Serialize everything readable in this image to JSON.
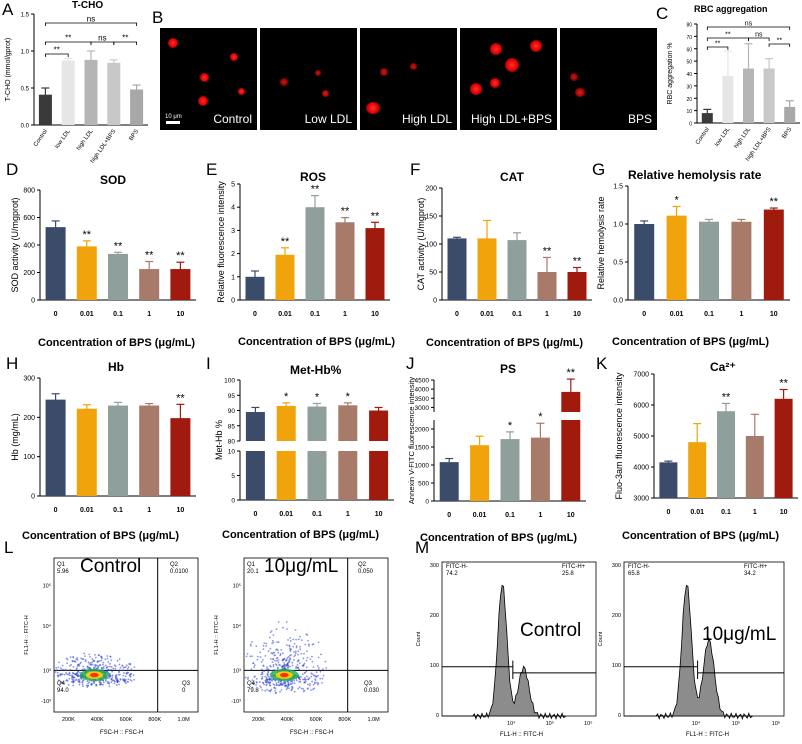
{
  "panels": {
    "A": {
      "letter": "A",
      "title": "T-CHO",
      "ylabel": "T-CHO (mmol/gprot)"
    },
    "B": {
      "letter": "B",
      "scale": "10 μm"
    },
    "C": {
      "letter": "C",
      "title": "RBC aggregation",
      "ylabel": "RBC aggregation %"
    },
    "D": {
      "letter": "D",
      "title": "SOD",
      "ylabel": "SOD activity (U/mgprot)",
      "xlabel": "Concentration of BPS (μg/mL)"
    },
    "E": {
      "letter": "E",
      "title": "ROS",
      "ylabel": "Relative fluorescence intensity",
      "xlabel": "Concentration of BPS (μg/mL)"
    },
    "F": {
      "letter": "F",
      "title": "CAT",
      "ylabel": "CAT activity (U/mgprot)",
      "xlabel": "Concentration of BPS (μg/mL)"
    },
    "G": {
      "letter": "G",
      "title": "Relative hemolysis rate",
      "ylabel": "Relative hemolysis rate",
      "xlabel": "Concentration of BPS (μg/mL)"
    },
    "H": {
      "letter": "H",
      "title": "Hb",
      "ylabel": "Hb (mg/mL)",
      "xlabel": "Concentration of BPS (μg/mL)"
    },
    "I": {
      "letter": "I",
      "title": "Met-Hb%",
      "ylabel": "Met-Hb %",
      "xlabel": "Concentration of BPS (μg/mL)"
    },
    "J": {
      "letter": "J",
      "title": "PS",
      "ylabel": "Annexin V-FITC fluorescence intensity",
      "xlabel": "Concentration of BPS (μg/mL)"
    },
    "K": {
      "letter": "K",
      "title": "Ca²⁺",
      "ylabel": "Fluo-3am fluorescence intensity",
      "xlabel": "Concentration of BPS (μg/mL)"
    },
    "L": {
      "letter": "L",
      "xlabel": "FSC-H :: FSC-H",
      "ylabel": "FL1-H :: FITC-H"
    },
    "M": {
      "letter": "M",
      "xlabel": "FL1-H :: FITC-H",
      "ylabel": "Count"
    }
  },
  "micrographs": [
    "Control",
    "Low LDL",
    "High LDL",
    "High LDL+BPS",
    "BPS"
  ],
  "colors": {
    "c0": "#3b4c6b",
    "c1": "#f0a30a",
    "c2": "#8f9f9c",
    "c3": "#a77a6a",
    "c4": "#a11a0e",
    "a1": "#3a3a3a",
    "a2": "#e6e6e6",
    "a3": "#b5b5b5",
    "a4": "#c8c8c8",
    "a5": "#a8a8a8"
  },
  "chart_data": [
    {
      "id": "A",
      "type": "bar",
      "categories": [
        "Control",
        "low LDL",
        "high LDL",
        "high LDL+BPS",
        "BPS"
      ],
      "values": [
        0.41,
        0.87,
        0.88,
        0.84,
        0.48
      ],
      "errors": [
        0.09,
        0.03,
        0.12,
        0.04,
        0.06
      ],
      "ylim": [
        0,
        1.5
      ],
      "yticks": [
        "0.0",
        "0.5",
        "1.0",
        "1.5"
      ],
      "sig": [
        "ns",
        "**",
        "**",
        "ns",
        "**"
      ]
    },
    {
      "id": "C",
      "type": "bar",
      "categories": [
        "Control",
        "low LDL",
        "high LDL",
        "high LDL+BPS",
        "BPS"
      ],
      "values": [
        8,
        38,
        44,
        44,
        13
      ],
      "errors": [
        3,
        20,
        20,
        8,
        5
      ],
      "ylim": [
        0,
        80
      ],
      "yticks": [
        "0",
        "10",
        "20",
        "30",
        "40",
        "50",
        "60",
        "70",
        "80"
      ],
      "sig": [
        "ns",
        "**",
        "**",
        "ns",
        "**"
      ]
    },
    {
      "id": "D",
      "type": "bar",
      "categories": [
        "0",
        "0.01",
        "0.1",
        "1",
        "10"
      ],
      "values": [
        530,
        390,
        335,
        225,
        225
      ],
      "errors": [
        45,
        40,
        12,
        55,
        50
      ],
      "ylim": [
        0,
        800
      ],
      "yticks": [
        "0",
        "200",
        "400",
        "600",
        "800"
      ],
      "stars": [
        "",
        "**",
        "**",
        "**",
        "**"
      ]
    },
    {
      "id": "E",
      "type": "bar",
      "categories": [
        "0",
        "0.01",
        "0.1",
        "1",
        "10"
      ],
      "values": [
        1.0,
        1.95,
        4.0,
        3.35,
        3.1
      ],
      "errors": [
        0.25,
        0.3,
        0.5,
        0.2,
        0.25
      ],
      "ylim": [
        0,
        5
      ],
      "yticks": [
        "0",
        "1",
        "2",
        "3",
        "4",
        "5"
      ],
      "stars": [
        "",
        "**",
        "**",
        "**",
        "**"
      ]
    },
    {
      "id": "F",
      "type": "bar",
      "categories": [
        "0",
        "0.01",
        "0.1",
        "1",
        "10"
      ],
      "values": [
        110,
        110,
        107,
        50,
        50
      ],
      "errors": [
        2,
        32,
        13,
        26,
        8
      ],
      "ylim": [
        0,
        200
      ],
      "yticks": [
        "0",
        "50",
        "100",
        "150",
        "200"
      ],
      "stars": [
        "",
        "",
        "",
        "**",
        "**"
      ]
    },
    {
      "id": "G",
      "type": "bar",
      "categories": [
        "0",
        "0.01",
        "0.1",
        "1",
        "10"
      ],
      "values": [
        1.0,
        1.11,
        1.03,
        1.03,
        1.19
      ],
      "errors": [
        0.04,
        0.12,
        0.03,
        0.03,
        0.02
      ],
      "ylim": [
        0,
        1.5
      ],
      "yticks": [
        "0.0",
        "0.5",
        "1.0",
        "1.5"
      ],
      "stars": [
        "",
        "*",
        "",
        "",
        "**"
      ]
    },
    {
      "id": "H",
      "type": "bar",
      "categories": [
        "0",
        "0.01",
        "0.1",
        "1",
        "10"
      ],
      "values": [
        245,
        222,
        230,
        230,
        198
      ],
      "errors": [
        15,
        10,
        8,
        5,
        35
      ],
      "ylim": [
        0,
        300
      ],
      "yticks": [
        "0",
        "100",
        "200",
        "300"
      ],
      "stars": [
        "",
        "",
        "",
        "",
        "**"
      ]
    },
    {
      "id": "I",
      "type": "bar",
      "categories": [
        "0",
        "0.01",
        "0.1",
        "1",
        "10"
      ],
      "values": [
        89.5,
        91.5,
        91.3,
        91.7,
        90.0
      ],
      "errors": [
        1.5,
        1.0,
        1.0,
        0.8,
        1.0
      ],
      "ylim": [
        0,
        100
      ],
      "yticks": [
        "0",
        "5",
        "10",
        "80",
        "85",
        "90",
        "95",
        "100"
      ],
      "stars": [
        "",
        "*",
        "*",
        "*",
        ""
      ],
      "broken": [
        10,
        80
      ]
    },
    {
      "id": "J",
      "type": "bar",
      "categories": [
        "0",
        "0.01",
        "0.1",
        "1",
        "10"
      ],
      "values": [
        1080,
        1550,
        1720,
        1760,
        3850
      ],
      "errors": [
        100,
        250,
        200,
        400,
        700
      ],
      "ylim": [
        0,
        4500
      ],
      "yticks": [
        "0",
        "500",
        "1000",
        "1500",
        "2000",
        "3000",
        "3500",
        "4000",
        "4500"
      ],
      "stars": [
        "",
        "",
        "*",
        "*",
        "**"
      ],
      "broken": [
        2250,
        2750
      ]
    },
    {
      "id": "K",
      "type": "bar",
      "categories": [
        "0",
        "0.01",
        "0.1",
        "1",
        "10"
      ],
      "values": [
        4150,
        4800,
        5800,
        5000,
        6200
      ],
      "errors": [
        40,
        600,
        250,
        700,
        300
      ],
      "ylim": [
        3000,
        7000
      ],
      "yticks": [
        "3000",
        "4000",
        "5000",
        "6000",
        "7000"
      ],
      "stars": [
        "",
        "",
        "**",
        "",
        "**"
      ]
    }
  ],
  "flow": {
    "L1": {
      "title": "Control",
      "q1": "Q1",
      "q1v": "5.96",
      "q2": "Q2",
      "q2v": "0.0100",
      "q3": "Q3",
      "q3v": "0",
      "q4": "Q4",
      "q4v": "94.0"
    },
    "L2": {
      "title": "10μg/mL",
      "q1": "Q1",
      "q1v": "20.1",
      "q2": "Q2",
      "q2v": "0.050",
      "q3": "Q3",
      "q3v": "0.030",
      "q4": "Q4",
      "q4v": "79.8"
    },
    "M1": {
      "title": "Control",
      "neg": "FITC-H-",
      "negv": "74.2",
      "pos": "FITC-H+",
      "posv": "25.8"
    },
    "M2": {
      "title": "10μg/mL",
      "neg": "FITC-H-",
      "negv": "65.8",
      "pos": "FITC-H+",
      "posv": "34.2"
    },
    "xticksL": [
      "200K",
      "400K",
      "600K",
      "800K",
      "1.0M"
    ],
    "yticksL": [
      "10⁵",
      "10⁴",
      "10³",
      "-10³"
    ],
    "xticksM": [
      "10⁴",
      "10⁵",
      "10⁶"
    ],
    "yticksM": [
      "300",
      "200",
      "100",
      "0"
    ]
  }
}
